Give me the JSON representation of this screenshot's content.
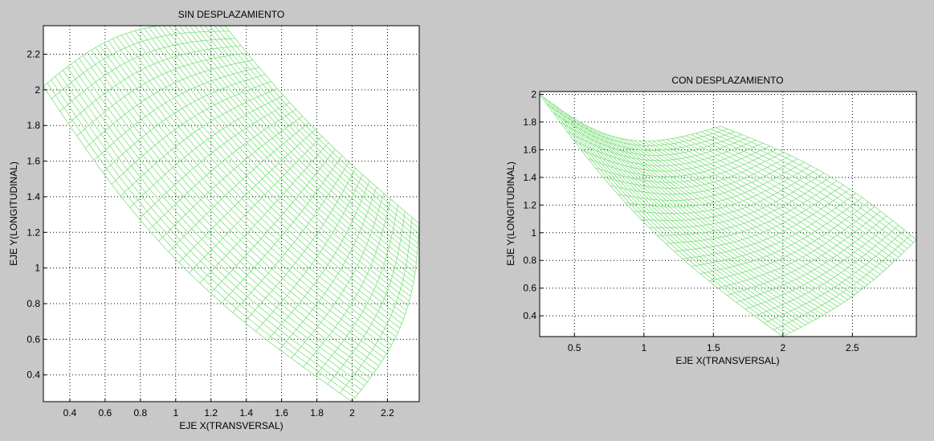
{
  "window": {
    "background": "#c8c8c8"
  },
  "chart_data": [
    {
      "type": "mesh",
      "title": "SIN DESPLAZAMIENTO",
      "xlabel": "EJE X(TRANSVERSAL)",
      "ylabel": "EJE Y(LONGITUDINAL)",
      "xlim": [
        0.25,
        2.38
      ],
      "ylim": [
        0.25,
        2.36
      ],
      "xticks": [
        0.4,
        0.6,
        0.8,
        1,
        1.2,
        1.4,
        1.6,
        1.8,
        2,
        2.2
      ],
      "xtick_labels": [
        "0.4",
        "0.6",
        "0.8",
        "1",
        "1.2",
        "1.4",
        "1.6",
        "1.8",
        "2",
        "2.2"
      ],
      "yticks": [
        0.4,
        0.6,
        0.8,
        1,
        1.2,
        1.4,
        1.6,
        1.8,
        2,
        2.2
      ],
      "ytick_labels": [
        "0.4",
        "0.6",
        "0.8",
        "1",
        "1.2",
        "1.4",
        "1.6",
        "1.8",
        "2",
        "2.2"
      ],
      "grid": true,
      "mesh_color": "#80e080",
      "mesh_corners": {
        "bottom_left": [
          0.25,
          2.02
        ],
        "bottom_right": [
          1.27,
          2.37
        ],
        "top_left": [
          2.0,
          0.25
        ],
        "top_right": [
          2.38,
          1.25
        ]
      },
      "mesh_divisions": [
        40,
        30
      ]
    },
    {
      "type": "mesh",
      "title": "CON DESPLAZAMIENTO",
      "xlabel": "EJE X(TRANSVERSAL)",
      "ylabel": "EJE Y(LONGITUDINAL)",
      "xlim": [
        0.25,
        2.96
      ],
      "ylim": [
        0.25,
        2.02
      ],
      "xticks": [
        0.5,
        1,
        1.5,
        2,
        2.5
      ],
      "xtick_labels": [
        "0.5",
        "1",
        "1.5",
        "2",
        "2.5"
      ],
      "yticks": [
        0.4,
        0.6,
        0.8,
        1,
        1.2,
        1.4,
        1.6,
        1.8,
        2
      ],
      "ytick_labels": [
        "0.4",
        "0.6",
        "0.8",
        "1",
        "1.2",
        "1.4",
        "1.6",
        "1.8",
        "2"
      ],
      "grid": true,
      "mesh_color": "#80e080",
      "mesh_corners": {
        "bottom_left": [
          0.25,
          2.0
        ],
        "bottom_right": [
          1.55,
          1.77
        ],
        "top_left": [
          2.0,
          0.25
        ],
        "top_right": [
          2.96,
          0.95
        ]
      },
      "mesh_divisions": [
        40,
        30
      ]
    }
  ]
}
